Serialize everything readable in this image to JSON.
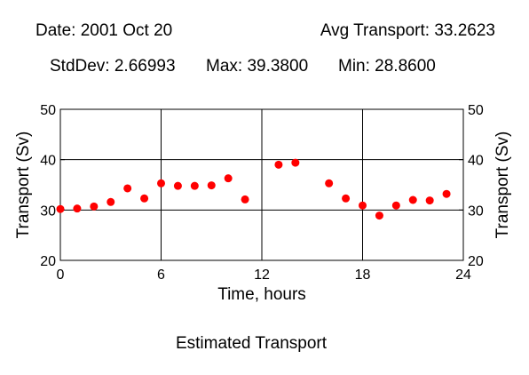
{
  "header": {
    "date": "Date: 2001 Oct 20",
    "avg": "Avg Transport: 33.2623",
    "stddev": "StdDev: 2.66993",
    "max": "Max: 39.3800",
    "min": "Min: 28.8600"
  },
  "chart_data": {
    "type": "scatter",
    "title": "Estimated Transport",
    "xlabel": "Time, hours",
    "ylabel_left": "Transport (Sv)",
    "ylabel_right": "Transport (Sv)",
    "xlim": [
      0,
      24
    ],
    "ylim": [
      20,
      50
    ],
    "xticks": [
      0,
      6,
      12,
      18,
      24
    ],
    "yticks": [
      20,
      30,
      40,
      50
    ],
    "grid": true,
    "marker_color": "#ff0000",
    "points": [
      {
        "x": 0,
        "y": 30.2
      },
      {
        "x": 1,
        "y": 30.3
      },
      {
        "x": 2,
        "y": 30.7
      },
      {
        "x": 3,
        "y": 31.6
      },
      {
        "x": 4,
        "y": 34.3
      },
      {
        "x": 5,
        "y": 32.3
      },
      {
        "x": 6,
        "y": 35.3
      },
      {
        "x": 7,
        "y": 34.8
      },
      {
        "x": 8,
        "y": 34.8
      },
      {
        "x": 9,
        "y": 34.9
      },
      {
        "x": 10,
        "y": 36.3
      },
      {
        "x": 11,
        "y": 32.1
      },
      {
        "x": 13,
        "y": 39.0
      },
      {
        "x": 14,
        "y": 39.4
      },
      {
        "x": 16,
        "y": 35.3
      },
      {
        "x": 17,
        "y": 32.3
      },
      {
        "x": 18,
        "y": 30.9
      },
      {
        "x": 19,
        "y": 28.9
      },
      {
        "x": 20,
        "y": 30.9
      },
      {
        "x": 21,
        "y": 32.0
      },
      {
        "x": 22,
        "y": 31.9
      },
      {
        "x": 23,
        "y": 33.2
      }
    ]
  }
}
